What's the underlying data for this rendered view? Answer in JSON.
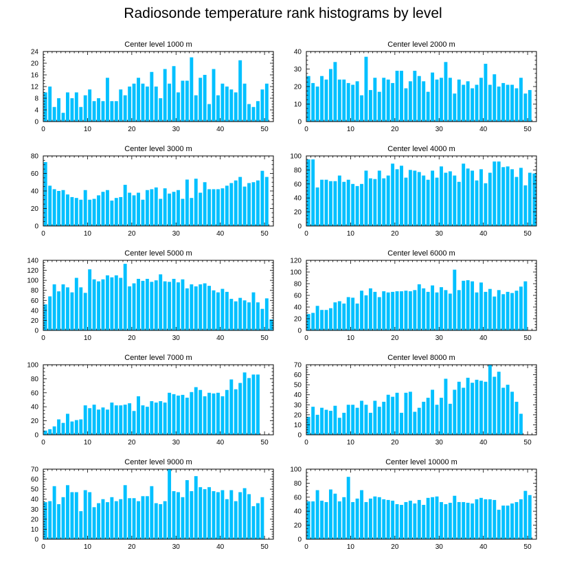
{
  "title": "Radiosonde temperature rank histograms by level",
  "colors": {
    "bar": "#00c0ff",
    "axis": "#000000"
  },
  "chart_data": [
    {
      "type": "bar",
      "title": "Center level 1000 m",
      "xlim": [
        0,
        52
      ],
      "ylim": [
        0,
        24
      ],
      "xticks": [
        0,
        10,
        20,
        30,
        40,
        50
      ],
      "yticks": [
        0,
        4,
        8,
        12,
        16,
        20,
        24
      ],
      "values": [
        10,
        12,
        5,
        8,
        3,
        10,
        8,
        10,
        5,
        9,
        11,
        7,
        8,
        7,
        15,
        7,
        7,
        11,
        9,
        12,
        13,
        15,
        13,
        12,
        17,
        12,
        8,
        18,
        13,
        19,
        10,
        14,
        14,
        22,
        9,
        15,
        16,
        6,
        18,
        9,
        13,
        12,
        11,
        10,
        21,
        13,
        6,
        5,
        7,
        11,
        13
      ]
    },
    {
      "type": "bar",
      "title": "Center level 2000 m",
      "xlim": [
        0,
        52
      ],
      "ylim": [
        0,
        40
      ],
      "xticks": [
        0,
        10,
        20,
        30,
        40,
        50
      ],
      "yticks": [
        0,
        10,
        20,
        30,
        40
      ],
      "values": [
        26,
        22,
        20,
        26,
        24,
        30,
        34,
        24,
        24,
        22,
        21,
        23,
        15,
        37,
        18,
        25,
        17,
        25,
        24,
        22,
        29,
        29,
        19,
        23,
        29,
        26,
        23,
        17,
        28,
        24,
        25,
        34,
        25,
        16,
        24,
        21,
        23,
        19,
        21,
        25,
        33,
        21,
        27,
        20,
        22,
        21,
        21,
        19,
        25,
        16,
        18
      ]
    },
    {
      "type": "bar",
      "title": "Center level 3000 m",
      "xlim": [
        0,
        52
      ],
      "ylim": [
        0,
        80
      ],
      "xticks": [
        0,
        10,
        20,
        30,
        40,
        50
      ],
      "yticks": [
        0,
        20,
        40,
        60,
        80
      ],
      "values": [
        73,
        46,
        42,
        40,
        41,
        36,
        33,
        32,
        30,
        41,
        30,
        31,
        35,
        39,
        41,
        29,
        32,
        33,
        47,
        38,
        35,
        38,
        30,
        41,
        42,
        44,
        31,
        43,
        37,
        39,
        41,
        31,
        53,
        32,
        54,
        38,
        50,
        42,
        42,
        42,
        43,
        46,
        49,
        52,
        56,
        45,
        49,
        50,
        52,
        63,
        56
      ]
    },
    {
      "type": "bar",
      "title": "Center level 4000 m",
      "xlim": [
        0,
        52
      ],
      "ylim": [
        0,
        100
      ],
      "xticks": [
        0,
        10,
        20,
        30,
        40,
        50
      ],
      "yticks": [
        0,
        20,
        40,
        60,
        80,
        100
      ],
      "values": [
        95,
        95,
        55,
        66,
        66,
        64,
        64,
        72,
        63,
        66,
        60,
        57,
        60,
        79,
        68,
        67,
        79,
        68,
        72,
        89,
        81,
        86,
        69,
        80,
        79,
        77,
        72,
        66,
        79,
        69,
        85,
        76,
        78,
        72,
        63,
        89,
        82,
        79,
        65,
        81,
        61,
        76,
        92,
        92,
        84,
        85,
        81,
        70,
        83,
        58,
        76,
        75
      ]
    },
    {
      "type": "bar",
      "title": "Center level 5000 m",
      "xlim": [
        0,
        52
      ],
      "ylim": [
        0,
        140
      ],
      "xticks": [
        0,
        10,
        20,
        30,
        40,
        50
      ],
      "yticks": [
        0,
        20,
        40,
        60,
        80,
        100,
        120,
        140
      ],
      "values": [
        52,
        68,
        92,
        78,
        92,
        86,
        76,
        105,
        86,
        75,
        122,
        102,
        98,
        102,
        110,
        106,
        110,
        105,
        133,
        88,
        94,
        103,
        99,
        103,
        97,
        100,
        112,
        98,
        97,
        103,
        96,
        102,
        84,
        92,
        88,
        92,
        94,
        89,
        80,
        76,
        83,
        77,
        63,
        58,
        65,
        60,
        56,
        76,
        56,
        43,
        64,
        22
      ]
    },
    {
      "type": "bar",
      "title": "Center level 6000 m",
      "xlim": [
        0,
        52
      ],
      "ylim": [
        0,
        120
      ],
      "xticks": [
        0,
        10,
        20,
        30,
        40,
        50
      ],
      "yticks": [
        0,
        20,
        40,
        60,
        80,
        100,
        120
      ],
      "values": [
        28,
        30,
        42,
        35,
        35,
        38,
        48,
        50,
        46,
        57,
        56,
        46,
        68,
        60,
        72,
        66,
        57,
        67,
        65,
        66,
        67,
        67,
        68,
        67,
        69,
        79,
        72,
        66,
        77,
        65,
        74,
        69,
        63,
        104,
        69,
        85,
        86,
        84,
        65,
        82,
        66,
        71,
        58,
        69,
        62,
        66,
        64,
        68,
        75,
        84
      ]
    },
    {
      "type": "bar",
      "title": "Center level 7000 m",
      "xlim": [
        0,
        52
      ],
      "ylim": [
        0,
        100
      ],
      "xticks": [
        0,
        10,
        20,
        30,
        40,
        50
      ],
      "yticks": [
        0,
        20,
        40,
        60,
        80,
        100
      ],
      "values": [
        6,
        8,
        12,
        22,
        17,
        30,
        19,
        21,
        22,
        42,
        38,
        43,
        36,
        39,
        36,
        46,
        42,
        42,
        43,
        45,
        34,
        55,
        42,
        40,
        48,
        46,
        48,
        46,
        60,
        58,
        56,
        57,
        53,
        61,
        68,
        64,
        55,
        60,
        59,
        60,
        55,
        64,
        79,
        65,
        74,
        89,
        81,
        86,
        86
      ]
    },
    {
      "type": "bar",
      "title": "Center level 8000 m",
      "xlim": [
        0,
        52
      ],
      "ylim": [
        0,
        70
      ],
      "xticks": [
        0,
        10,
        20,
        30,
        40,
        50
      ],
      "yticks": [
        0,
        10,
        20,
        30,
        40,
        50,
        60,
        70
      ],
      "values": [
        18,
        28,
        20,
        27,
        25,
        24,
        29,
        17,
        22,
        30,
        30,
        27,
        34,
        30,
        22,
        34,
        28,
        33,
        40,
        38,
        42,
        22,
        42,
        43,
        23,
        27,
        33,
        37,
        45,
        30,
        37,
        56,
        31,
        45,
        53,
        47,
        57,
        52,
        55,
        54,
        53,
        70,
        58,
        63,
        47,
        50,
        43,
        33,
        21
      ]
    },
    {
      "type": "bar",
      "title": "Center level 9000 m",
      "xlim": [
        0,
        52
      ],
      "ylim": [
        0,
        70
      ],
      "xticks": [
        0,
        10,
        20,
        30,
        40,
        50
      ],
      "yticks": [
        0,
        10,
        20,
        30,
        40,
        50,
        60,
        70
      ],
      "values": [
        37,
        38,
        53,
        35,
        42,
        54,
        47,
        47,
        28,
        49,
        47,
        32,
        36,
        40,
        37,
        42,
        38,
        40,
        54,
        41,
        41,
        38,
        43,
        43,
        53,
        36,
        35,
        38,
        70,
        48,
        47,
        42,
        59,
        48,
        63,
        52,
        50,
        52,
        48,
        47,
        49,
        40,
        49,
        38,
        47,
        51,
        45,
        33,
        36,
        42
      ]
    },
    {
      "type": "bar",
      "title": "Center level 10000 m",
      "xlim": [
        0,
        52
      ],
      "ylim": [
        0,
        100
      ],
      "xticks": [
        0,
        10,
        20,
        30,
        40,
        50
      ],
      "yticks": [
        0,
        20,
        40,
        60,
        80,
        100
      ],
      "values": [
        54,
        54,
        70,
        55,
        53,
        71,
        65,
        54,
        60,
        89,
        53,
        58,
        70,
        53,
        58,
        61,
        60,
        57,
        56,
        55,
        50,
        49,
        53,
        55,
        51,
        56,
        49,
        59,
        60,
        61,
        53,
        50,
        52,
        62,
        53,
        53,
        52,
        51,
        57,
        59,
        57,
        57,
        56,
        42,
        48,
        48,
        51,
        53,
        57,
        69,
        63
      ]
    }
  ]
}
